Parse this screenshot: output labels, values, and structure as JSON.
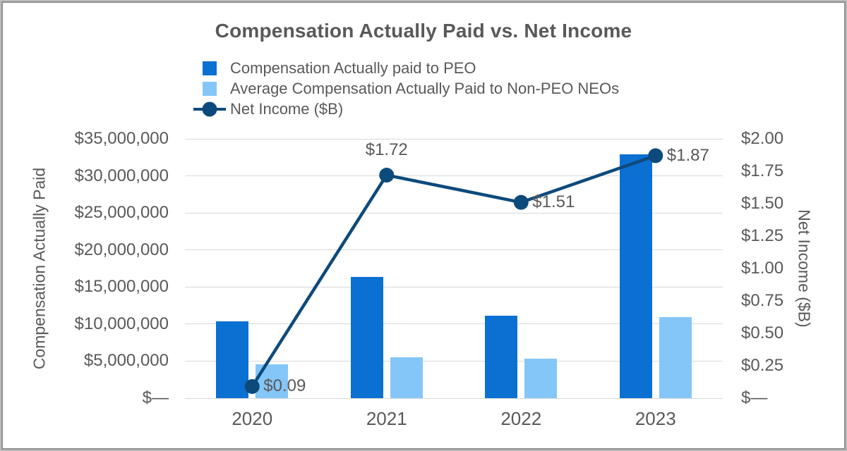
{
  "chart_data": {
    "type": "combo-bar-line",
    "title": "Compensation Actually Paid vs. Net Income",
    "categories": [
      "2020",
      "2021",
      "2022",
      "2023"
    ],
    "bar_series": [
      {
        "name": "Compensation Actually paid to PEO",
        "color": "#0a70d2",
        "values": [
          10400000,
          16400000,
          11100000,
          32900000
        ]
      },
      {
        "name": "Average Compensation Actually Paid to Non-PEO NEOs",
        "color": "#85c6f8",
        "values": [
          4600000,
          5500000,
          5300000,
          10900000
        ]
      }
    ],
    "line_series": {
      "name": "Net Income ($B)",
      "color": "#0d4a7c",
      "values": [
        0.09,
        1.72,
        1.51,
        1.87
      ],
      "data_labels": [
        "$0.09",
        "$1.72",
        "$1.51",
        "$1.87"
      ],
      "label_placement": [
        "right",
        "above",
        "right",
        "right"
      ]
    },
    "left_axis": {
      "title": "Compensation Actually Paid",
      "max": 35000000,
      "tick_labels": [
        "$35,000,000",
        "$30,000,000",
        "$25,000,000",
        "$20,000,000",
        "$15,000,000",
        "$10,000,000",
        "$5,000,000",
        "$—"
      ]
    },
    "right_axis": {
      "title": "Net Income ($B)",
      "max": 2,
      "tick_labels": [
        "$2.00",
        "$1.75",
        "$1.50",
        "$1.25",
        "$1.00",
        "$0.75",
        "$0.50",
        "$0.25",
        "$—"
      ]
    },
    "grid": true,
    "legend_position": "top-left"
  },
  "colors": {
    "text": "#595959",
    "gridline": "#d9d9d9",
    "frame_border": "#a6a6a6"
  }
}
